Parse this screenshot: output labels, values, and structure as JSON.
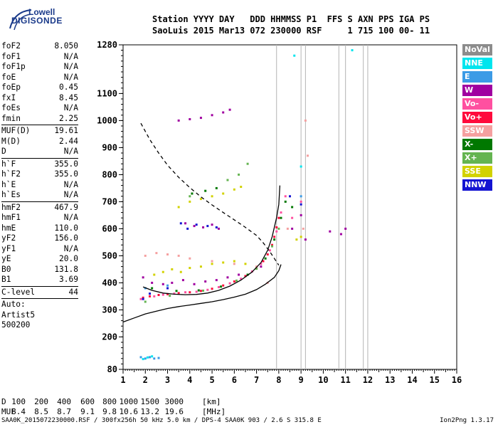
{
  "logo": {
    "line1": "Lowell",
    "line2": "DIGISONDE"
  },
  "header": {
    "line1": "Station YYYY DAY   DDD HHMMSS P1  FFS S AXN PPS IGA PS",
    "line2": "SaoLuis 2015 Mar13 072 230000 RSF     1 715 100 00- 11"
  },
  "params": [
    {
      "name": "foF2",
      "value": "8.050"
    },
    {
      "name": "foF1",
      "value": "N/A"
    },
    {
      "name": "foF1p",
      "value": "N/A"
    },
    {
      "name": "foE",
      "value": "N/A"
    },
    {
      "name": "foEp",
      "value": "0.45"
    },
    {
      "name": "fxI",
      "value": "8.45"
    },
    {
      "name": "foEs",
      "value": "N/A"
    },
    {
      "name": "fmin",
      "value": "2.25"
    },
    {
      "name": "MUF(D)",
      "value": "19.61"
    },
    {
      "name": "M(D)",
      "value": "2.44"
    },
    {
      "name": "D",
      "value": "N/A"
    },
    {
      "name": "h`F",
      "value": "355.0"
    },
    {
      "name": "h`F2",
      "value": "355.0"
    },
    {
      "name": "h`E",
      "value": "N/A"
    },
    {
      "name": "h`Es",
      "value": "N/A"
    },
    {
      "name": "hmF2",
      "value": "467.9"
    },
    {
      "name": "hmF1",
      "value": "N/A"
    },
    {
      "name": "hmE",
      "value": "110.0"
    },
    {
      "name": "yF2",
      "value": "156.0"
    },
    {
      "name": "yF1",
      "value": "N/A"
    },
    {
      "name": "yE",
      "value": "20.0"
    },
    {
      "name": "B0",
      "value": "131.8"
    },
    {
      "name": "B1",
      "value": "3.69"
    },
    {
      "name": "C-level",
      "value": "44"
    }
  ],
  "autoscale": {
    "line1": "Auto:",
    "line2": "Artist5",
    "line3": "500200"
  },
  "legend": [
    {
      "label": "NoVal",
      "color": "#8c8c8c",
      "text": "#ffffff"
    },
    {
      "label": "NNE",
      "color": "#00e5ee",
      "text": "#ffffff"
    },
    {
      "label": "E",
      "color": "#3c9be6",
      "text": "#ffffff"
    },
    {
      "label": "W",
      "color": "#a000a0",
      "text": "#ffffff"
    },
    {
      "label": "Vo-",
      "color": "#ff50a0",
      "text": "#ffffff"
    },
    {
      "label": "Vo+",
      "color": "#ff0a3c",
      "text": "#ffffff"
    },
    {
      "label": "SSW",
      "color": "#f5a0a0",
      "text": "#ffffff"
    },
    {
      "label": "X-",
      "color": "#007800",
      "text": "#ffffff"
    },
    {
      "label": "X+",
      "color": "#64b450",
      "text": "#ffffff"
    },
    {
      "label": "SSE",
      "color": "#d2d200",
      "text": "#ffffff"
    },
    {
      "label": "NNW",
      "color": "#1414d2",
      "text": "#ffffff"
    }
  ],
  "muf_table": {
    "d_label": "D",
    "d_values": [
      "100",
      "200",
      "400",
      "600",
      "800",
      "1000",
      "1500",
      "3000"
    ],
    "d_unit": "[km]",
    "muf_label": "MUF",
    "muf_values": [
      "8.4",
      "8.5",
      "8.7",
      "9.1",
      "9.8",
      "10.6",
      "13.2",
      "19.6"
    ],
    "muf_unit": "[MHz]"
  },
  "footer": {
    "left": "SAA0K_2015072230000.RSF / 300fx256h 50 kHz 5.0 km / DPS-4 SAA0K 903 / 2.6 S 315.8 E",
    "right": "Ion2Png 1.3.17"
  },
  "chart_data": {
    "type": "scatter",
    "xlim": [
      1,
      16
    ],
    "ylim": [
      80,
      1280
    ],
    "x_ticks": [
      1,
      2,
      3,
      4,
      5,
      6,
      7,
      8,
      9,
      10,
      11,
      12,
      13,
      14,
      15,
      16
    ],
    "y_ticks": [
      80,
      200,
      300,
      400,
      500,
      600,
      700,
      800,
      900,
      1000,
      1100,
      1280
    ],
    "vlines": [
      7.9,
      9.0,
      9.2,
      10.7,
      11.0,
      11.8,
      12.0
    ],
    "series": [
      {
        "color": "#ff0a3c",
        "points": [
          [
            1.9,
            345
          ],
          [
            2.2,
            350
          ],
          [
            2.6,
            355
          ],
          [
            3.0,
            358
          ],
          [
            3.5,
            362
          ],
          [
            4.0,
            365
          ],
          [
            4.5,
            370
          ],
          [
            5.0,
            378
          ],
          [
            5.5,
            390
          ],
          [
            6.0,
            405
          ],
          [
            6.5,
            425
          ],
          [
            7.0,
            455
          ],
          [
            7.3,
            480
          ],
          [
            7.5,
            505
          ],
          [
            7.7,
            540
          ],
          [
            7.8,
            570
          ],
          [
            7.9,
            605
          ],
          [
            8.0,
            640
          ]
        ]
      },
      {
        "color": "#ff50a0",
        "points": [
          [
            1.8,
            340
          ],
          [
            2.4,
            350
          ],
          [
            2.8,
            356
          ],
          [
            3.3,
            360
          ],
          [
            3.8,
            365
          ],
          [
            4.3,
            367
          ],
          [
            4.8,
            374
          ],
          [
            5.3,
            384
          ],
          [
            5.8,
            398
          ],
          [
            6.3,
            415
          ],
          [
            6.8,
            442
          ],
          [
            7.2,
            470
          ],
          [
            7.6,
            520
          ],
          [
            7.9,
            590
          ],
          [
            8.1,
            660
          ],
          [
            8.3,
            720
          ],
          [
            8.6,
            640
          ],
          [
            9.0,
            700
          ]
        ]
      },
      {
        "color": "#a000a0",
        "points": [
          [
            1.9,
            420
          ],
          [
            2.3,
            400
          ],
          [
            2.8,
            395
          ],
          [
            3.2,
            400
          ],
          [
            3.7,
            410
          ],
          [
            4.2,
            395
          ],
          [
            4.7,
            405
          ],
          [
            5.2,
            410
          ],
          [
            5.7,
            420
          ],
          [
            6.2,
            430
          ],
          [
            7.2,
            460
          ],
          [
            8.6,
            600
          ],
          [
            9.0,
            650
          ],
          [
            9.2,
            560
          ],
          [
            10.3,
            590
          ],
          [
            10.8,
            580
          ],
          [
            11.0,
            600
          ],
          [
            3.8,
            620
          ],
          [
            4.2,
            610
          ],
          [
            4.6,
            605
          ],
          [
            5.0,
            615
          ],
          [
            5.3,
            600
          ],
          [
            3.5,
            1000
          ],
          [
            4.0,
            1005
          ],
          [
            4.5,
            1010
          ],
          [
            5.0,
            1020
          ],
          [
            5.5,
            1030
          ],
          [
            5.8,
            1040
          ]
        ]
      },
      {
        "color": "#1414d2",
        "points": [
          [
            3.6,
            620
          ],
          [
            3.9,
            600
          ],
          [
            4.3,
            615
          ],
          [
            4.8,
            610
          ],
          [
            5.2,
            605
          ],
          [
            2.2,
            360
          ],
          [
            3.0,
            380
          ],
          [
            1.9,
            340
          ],
          [
            8.5,
            720
          ],
          [
            9.0,
            690
          ]
        ]
      },
      {
        "color": "#d2d200",
        "points": [
          [
            2.4,
            430
          ],
          [
            2.8,
            440
          ],
          [
            3.2,
            450
          ],
          [
            3.6,
            440
          ],
          [
            4.0,
            455
          ],
          [
            4.5,
            460
          ],
          [
            5.0,
            470
          ],
          [
            5.5,
            475
          ],
          [
            6.0,
            480
          ],
          [
            6.5,
            470
          ],
          [
            3.5,
            680
          ],
          [
            4.0,
            700
          ],
          [
            4.5,
            710
          ],
          [
            5.0,
            720
          ],
          [
            5.5,
            730
          ],
          [
            6.0,
            745
          ],
          [
            6.3,
            755
          ],
          [
            8.8,
            560
          ],
          [
            9.0,
            570
          ]
        ]
      },
      {
        "color": "#007800",
        "points": [
          [
            2.3,
            380
          ],
          [
            3.4,
            370
          ],
          [
            4.4,
            372
          ],
          [
            5.4,
            386
          ],
          [
            6.6,
            430
          ],
          [
            7.4,
            490
          ],
          [
            7.8,
            560
          ],
          [
            8.1,
            640
          ],
          [
            8.3,
            700
          ],
          [
            8.6,
            680
          ],
          [
            4.1,
            730
          ],
          [
            4.7,
            740
          ],
          [
            5.2,
            750
          ]
        ]
      },
      {
        "color": "#64b450",
        "points": [
          [
            2.0,
            330
          ],
          [
            3.1,
            352
          ],
          [
            4.6,
            371
          ],
          [
            6.1,
            408
          ],
          [
            7.0,
            452
          ],
          [
            7.7,
            535
          ],
          [
            8.0,
            600
          ],
          [
            4.0,
            720
          ],
          [
            5.7,
            780
          ],
          [
            6.2,
            800
          ],
          [
            6.6,
            840
          ]
        ]
      },
      {
        "color": "#f5a0a0",
        "points": [
          [
            2.0,
            500
          ],
          [
            2.5,
            510
          ],
          [
            3.0,
            505
          ],
          [
            3.5,
            500
          ],
          [
            4.0,
            490
          ],
          [
            5.0,
            480
          ],
          [
            6.0,
            470
          ],
          [
            7.0,
            460
          ],
          [
            7.5,
            400
          ],
          [
            8.4,
            600
          ],
          [
            9.2,
            1000
          ],
          [
            9.3,
            870
          ],
          [
            9.1,
            600
          ]
        ]
      },
      {
        "color": "#3c9be6",
        "points": [
          [
            1.8,
            125
          ],
          [
            2.0,
            120
          ],
          [
            2.2,
            125
          ],
          [
            2.4,
            120
          ],
          [
            2.6,
            122
          ],
          [
            2.0,
            380
          ],
          [
            3.0,
            390
          ],
          [
            9.0,
            720
          ]
        ]
      },
      {
        "color": "#00e5ee",
        "points": [
          [
            1.9,
            118
          ],
          [
            2.1,
            124
          ],
          [
            2.3,
            128
          ],
          [
            8.7,
            1240
          ],
          [
            11.3,
            1260
          ],
          [
            9.0,
            830
          ]
        ]
      }
    ],
    "curves": [
      {
        "style": "solid",
        "points": [
          [
            1.9,
            385
          ],
          [
            2.3,
            372
          ],
          [
            2.8,
            362
          ],
          [
            3.3,
            358
          ],
          [
            3.8,
            356
          ],
          [
            4.3,
            357
          ],
          [
            4.8,
            362
          ],
          [
            5.3,
            372
          ],
          [
            5.8,
            388
          ],
          [
            6.3,
            410
          ],
          [
            6.8,
            440
          ],
          [
            7.2,
            475
          ],
          [
            7.5,
            520
          ],
          [
            7.7,
            570
          ],
          [
            7.9,
            640
          ],
          [
            8.0,
            690
          ],
          [
            8.05,
            760
          ]
        ]
      },
      {
        "style": "solid",
        "points": [
          [
            1.0,
            255
          ],
          [
            1.5,
            270
          ],
          [
            2.0,
            285
          ],
          [
            2.5,
            295
          ],
          [
            3.0,
            305
          ],
          [
            3.5,
            312
          ],
          [
            4.0,
            318
          ],
          [
            4.5,
            324
          ],
          [
            5.0,
            330
          ],
          [
            5.5,
            338
          ],
          [
            6.0,
            347
          ],
          [
            6.5,
            358
          ],
          [
            7.0,
            375
          ],
          [
            7.4,
            395
          ],
          [
            7.8,
            420
          ],
          [
            8.0,
            445
          ],
          [
            8.1,
            467.9
          ]
        ]
      },
      {
        "style": "dashed",
        "points": [
          [
            1.8,
            990
          ],
          [
            2.2,
            930
          ],
          [
            2.6,
            880
          ],
          [
            3.0,
            835
          ],
          [
            3.5,
            790
          ],
          [
            4.0,
            752
          ],
          [
            4.5,
            718
          ],
          [
            5.0,
            688
          ],
          [
            5.5,
            660
          ],
          [
            6.0,
            633
          ],
          [
            6.5,
            605
          ],
          [
            7.0,
            575
          ],
          [
            7.3,
            548
          ],
          [
            7.6,
            515
          ],
          [
            7.8,
            490
          ],
          [
            8.0,
            465
          ]
        ]
      }
    ]
  }
}
